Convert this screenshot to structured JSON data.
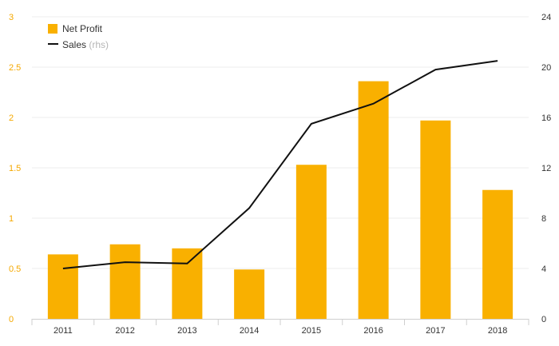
{
  "colors": {
    "bar": "#f9b000",
    "line": "#111111",
    "grid": "#ececec",
    "left_tick": "#f5a800",
    "right_tick": "#333333"
  },
  "legend": {
    "bar_label": "Net Profit",
    "line_label": "Sales",
    "line_unit": "(rhs)"
  },
  "chart_data": {
    "type": "bar",
    "categories": [
      "2011",
      "2012",
      "2013",
      "2014",
      "2015",
      "2016",
      "2017",
      "2018"
    ],
    "series": [
      {
        "name": "Net Profit",
        "type": "bar",
        "axis": "left",
        "values": [
          0.64,
          0.74,
          0.7,
          0.49,
          1.53,
          2.36,
          1.97,
          1.28
        ]
      },
      {
        "name": "Sales (rhs)",
        "type": "line",
        "axis": "right",
        "values": [
          4.0,
          4.5,
          4.4,
          8.8,
          15.5,
          17.1,
          19.8,
          20.5
        ]
      }
    ],
    "y_left": {
      "lim": [
        0,
        3
      ],
      "ticks": [
        "0",
        "0.5",
        "1",
        "1.5",
        "2",
        "2.5",
        "3"
      ]
    },
    "y_right": {
      "lim": [
        0,
        24
      ],
      "ticks": [
        "0",
        "4",
        "8",
        "12",
        "16",
        "20",
        "24"
      ]
    },
    "legend_position": "top-left",
    "grid": true
  }
}
